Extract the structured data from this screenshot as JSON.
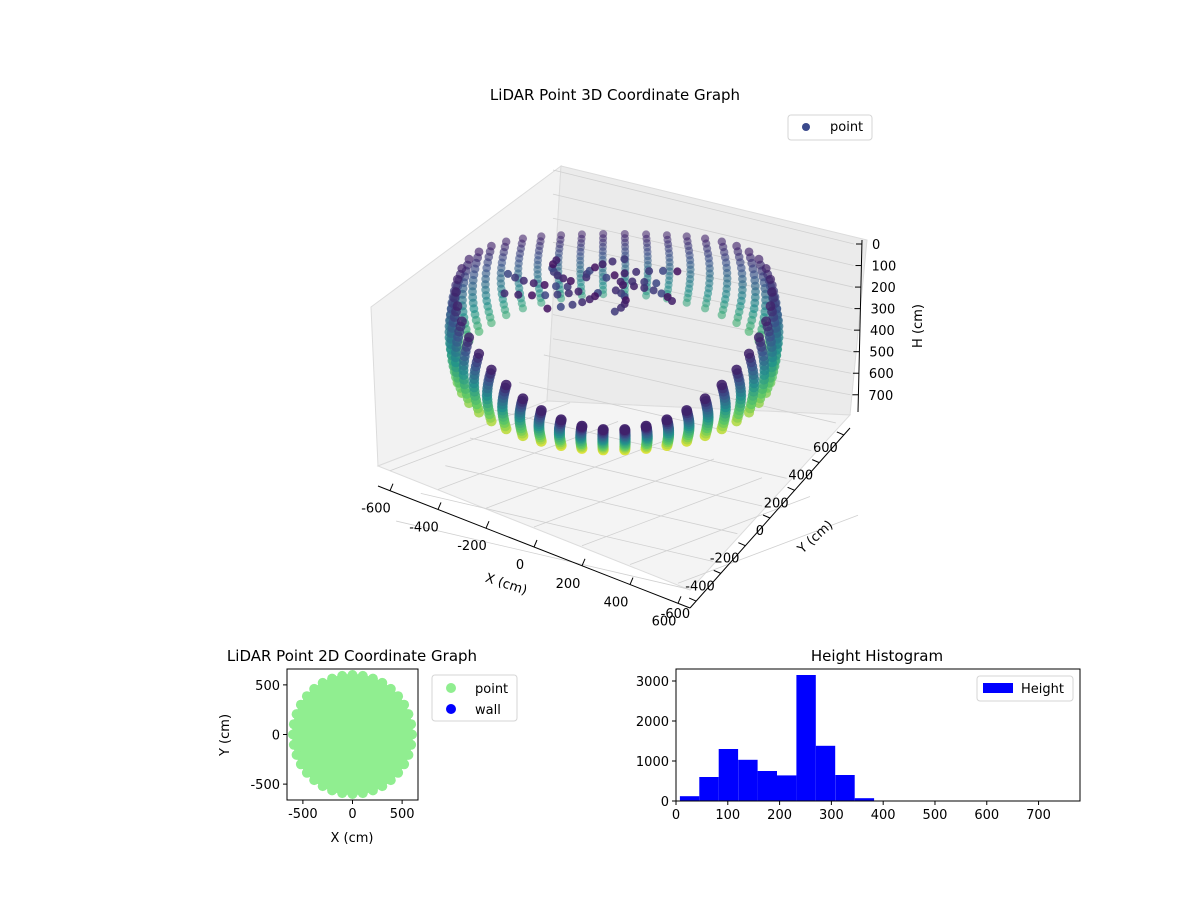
{
  "chart_data": [
    {
      "type": "scatter",
      "projection": "3d",
      "title": "LiDAR Point 3D Coordinate Graph",
      "xlabel": "X (cm)",
      "ylabel": "Y (cm)",
      "zlabel": "H (cm)",
      "xlim": [
        -650,
        650
      ],
      "ylim": [
        -650,
        650
      ],
      "zlim": [
        780,
        0
      ],
      "z_inverted": true,
      "xticks": [
        -600,
        -400,
        -200,
        0,
        200,
        400,
        600
      ],
      "yticks": [
        -600,
        -400,
        -200,
        0,
        200,
        400,
        600
      ],
      "zticks": [
        0,
        100,
        200,
        300,
        400,
        500,
        600,
        700
      ],
      "legend": [
        "point"
      ],
      "legend_position": "upper right",
      "colormap": "viridis",
      "series": [
        {
          "name": "point",
          "description_shape": "ring of vertical arcs around origin, radius 550-620 cm, heights 0-380 cm",
          "points": [
            {
              "x": -560,
              "y": -260,
              "h": 240
            },
            {
              "x": -520,
              "y": -330,
              "h": 260
            },
            {
              "x": -460,
              "y": -400,
              "h": 270
            },
            {
              "x": -380,
              "y": -470,
              "h": 280
            },
            {
              "x": -290,
              "y": -530,
              "h": 285
            },
            {
              "x": -190,
              "y": -575,
              "h": 290
            },
            {
              "x": -80,
              "y": -600,
              "h": 295
            },
            {
              "x": 30,
              "y": -605,
              "h": 300
            },
            {
              "x": 140,
              "y": -590,
              "h": 300
            },
            {
              "x": 250,
              "y": -555,
              "h": 295
            },
            {
              "x": 350,
              "y": -500,
              "h": 290
            },
            {
              "x": 440,
              "y": -430,
              "h": 285
            },
            {
              "x": 510,
              "y": -340,
              "h": 280
            },
            {
              "x": 560,
              "y": -240,
              "h": 270
            },
            {
              "x": 590,
              "y": -120,
              "h": 260
            },
            {
              "x": 600,
              "y": 0,
              "h": 250
            },
            {
              "x": 590,
              "y": 130,
              "h": 240
            },
            {
              "x": 550,
              "y": 250,
              "h": 230
            },
            {
              "x": 480,
              "y": 360,
              "h": 220
            },
            {
              "x": 390,
              "y": 450,
              "h": 210
            },
            {
              "x": 280,
              "y": 520,
              "h": 200
            },
            {
              "x": 160,
              "y": 570,
              "h": 190
            },
            {
              "x": 30,
              "y": 595,
              "h": 180
            },
            {
              "x": -100,
              "y": 590,
              "h": 170
            },
            {
              "x": -230,
              "y": 555,
              "h": 160
            },
            {
              "x": -350,
              "y": 490,
              "h": 150
            },
            {
              "x": -450,
              "y": 400,
              "h": 140
            },
            {
              "x": -525,
              "y": 290,
              "h": 130
            },
            {
              "x": -575,
              "y": 160,
              "h": 120
            },
            {
              "x": -600,
              "y": 20,
              "h": 110
            },
            {
              "x": -590,
              "y": -120,
              "h": 120
            },
            {
              "x": 0,
              "y": 0,
              "h": 80
            },
            {
              "x": 50,
              "y": 30,
              "h": 100
            }
          ]
        }
      ]
    },
    {
      "type": "scatter",
      "title": "LiDAR Point 2D Coordinate Graph",
      "xlabel": "X (cm)",
      "ylabel": "Y (cm)",
      "xlim": [
        -660,
        660
      ],
      "ylim": [
        -660,
        660
      ],
      "xticks": [
        -500,
        0,
        500
      ],
      "yticks": [
        -500,
        0,
        500
      ],
      "legend": [
        "point",
        "wall"
      ],
      "legend_position": "outside right",
      "series": [
        {
          "name": "point",
          "color": "#90ee90",
          "shape": "filled disc, radius ~610 cm centered at origin"
        },
        {
          "name": "wall",
          "color": "#0000ff",
          "points": []
        }
      ]
    },
    {
      "type": "bar",
      "subtype": "histogram",
      "title": "Height Histogram",
      "xlim": [
        0,
        780
      ],
      "ylim": [
        0,
        3300
      ],
      "xticks": [
        0,
        100,
        200,
        300,
        400,
        500,
        600,
        700
      ],
      "yticks": [
        0,
        1000,
        2000,
        3000
      ],
      "legend": [
        "Height"
      ],
      "legend_position": "upper right",
      "bin_width": 37.5,
      "series": [
        {
          "name": "Height",
          "color": "#0000ff",
          "bins": [
            {
              "from": 7.5,
              "to": 45,
              "count": 120
            },
            {
              "from": 45,
              "to": 82.5,
              "count": 600
            },
            {
              "from": 82.5,
              "to": 120,
              "count": 1300
            },
            {
              "from": 120,
              "to": 157.5,
              "count": 1030
            },
            {
              "from": 157.5,
              "to": 195,
              "count": 750
            },
            {
              "from": 195,
              "to": 232.5,
              "count": 640
            },
            {
              "from": 232.5,
              "to": 270,
              "count": 3150
            },
            {
              "from": 270,
              "to": 307.5,
              "count": 1380
            },
            {
              "from": 307.5,
              "to": 345,
              "count": 650
            },
            {
              "from": 345,
              "to": 382.5,
              "count": 70
            },
            {
              "from": 382.5,
              "to": 420,
              "count": 5
            },
            {
              "from": 420,
              "to": 457.5,
              "count": 5
            },
            {
              "from": 457.5,
              "to": 495,
              "count": 5
            },
            {
              "from": 495,
              "to": 532.5,
              "count": 5
            },
            {
              "from": 532.5,
              "to": 570,
              "count": 5
            },
            {
              "from": 570,
              "to": 607.5,
              "count": 5
            },
            {
              "from": 607.5,
              "to": 645,
              "count": 5
            },
            {
              "from": 645,
              "to": 682.5,
              "count": 5
            },
            {
              "from": 682.5,
              "to": 720,
              "count": 5
            },
            {
              "from": 720,
              "to": 757.5,
              "count": 5
            }
          ]
        }
      ]
    }
  ]
}
